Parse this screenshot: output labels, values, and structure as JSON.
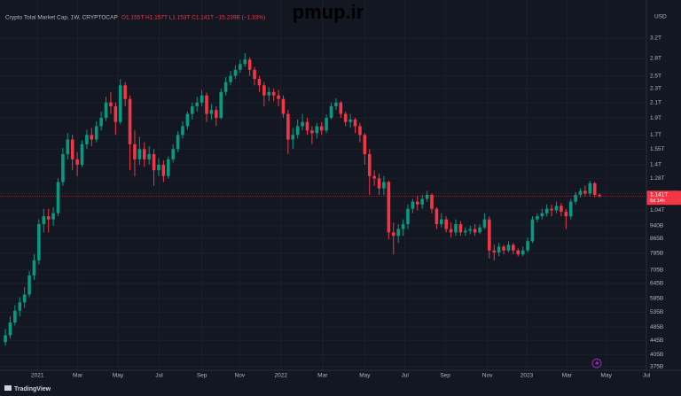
{
  "chart_data": {
    "type": "candlestick",
    "title": "Crypto Total Market Cap, 1W, CRYPTOCAP",
    "legend_ohlc": "O1.155T H1.157T L1.153T C1.141T −15.239B (−1.33%)",
    "watermark": "pmup.ir",
    "currency": "USD",
    "brand": "TradingView",
    "countdown": "6d 14h",
    "last_price": {
      "value": 1.141,
      "label": "1.141T"
    },
    "log_scale": true,
    "grid": true,
    "up_color": "#089981",
    "down_color": "#f23645",
    "open": [
      0.44,
      0.46,
      0.5,
      0.54,
      0.57,
      0.6,
      0.68,
      0.75,
      0.95,
      1.0,
      0.98,
      1.02,
      1.25,
      1.5,
      1.65,
      1.45,
      1.4,
      1.6,
      1.7,
      1.65,
      1.8,
      1.9,
      2.1,
      2.05,
      1.85,
      2.35,
      2.15,
      1.6,
      1.45,
      1.55,
      1.45,
      1.5,
      1.35,
      1.4,
      1.3,
      1.45,
      1.55,
      1.7,
      1.8,
      1.95,
      2.05,
      2.1,
      2.2,
      1.95,
      2.0,
      1.9,
      2.25,
      2.4,
      2.5,
      2.6,
      2.7,
      2.78,
      2.6,
      2.45,
      2.35,
      2.2,
      2.25,
      2.2,
      2.15,
      1.95,
      1.65,
      1.7,
      1.8,
      1.85,
      1.75,
      1.72,
      1.8,
      1.75,
      1.9,
      2.05,
      2.1,
      1.95,
      1.85,
      1.88,
      1.8,
      1.7,
      1.5,
      1.3,
      1.28,
      1.2,
      1.25,
      0.9,
      0.88,
      0.92,
      0.95,
      1.05,
      1.1,
      1.08,
      1.12,
      1.15,
      1.05,
      0.95,
      0.98,
      0.92,
      0.9,
      0.95,
      0.9,
      0.91,
      0.92,
      0.9,
      0.93,
      0.98,
      0.8,
      0.79,
      0.82,
      0.8,
      0.83,
      0.8,
      0.78,
      0.8,
      0.85,
      0.98,
      1.0,
      1.02,
      1.05,
      1.04,
      1.07,
      1.03,
      1.0,
      1.1,
      1.15,
      1.18,
      1.16,
      1.24,
      1.15
    ],
    "high": [
      0.48,
      0.52,
      0.56,
      0.59,
      0.63,
      0.7,
      0.78,
      0.98,
      1.05,
      1.05,
      1.06,
      1.28,
      1.56,
      1.72,
      1.7,
      1.52,
      1.64,
      1.76,
      1.78,
      1.86,
      1.98,
      2.18,
      2.25,
      2.1,
      2.45,
      2.4,
      2.2,
      1.75,
      1.68,
      1.62,
      1.58,
      1.55,
      1.46,
      1.44,
      1.48,
      1.6,
      1.74,
      1.86,
      1.98,
      2.1,
      2.18,
      2.28,
      2.24,
      2.08,
      2.05,
      2.3,
      2.48,
      2.58,
      2.68,
      2.78,
      2.9,
      2.82,
      2.65,
      2.5,
      2.4,
      2.32,
      2.3,
      2.28,
      2.2,
      2.0,
      1.78,
      1.88,
      1.95,
      1.9,
      1.8,
      1.84,
      1.85,
      1.94,
      2.1,
      2.16,
      2.12,
      1.98,
      1.95,
      1.9,
      1.84,
      1.72,
      1.55,
      1.35,
      1.32,
      1.3,
      1.26,
      0.96,
      0.95,
      0.98,
      1.08,
      1.12,
      1.14,
      1.15,
      1.18,
      1.16,
      1.06,
      1.02,
      1.0,
      0.96,
      0.98,
      0.97,
      0.93,
      0.94,
      0.95,
      0.95,
      1.02,
      1.0,
      0.83,
      0.84,
      0.83,
      0.85,
      0.84,
      0.81,
      0.82,
      0.87,
      1.0,
      1.02,
      1.05,
      1.08,
      1.08,
      1.1,
      1.09,
      1.05,
      1.12,
      1.17,
      1.2,
      1.22,
      1.26,
      1.25,
      1.16
    ],
    "low": [
      0.43,
      0.45,
      0.49,
      0.52,
      0.55,
      0.59,
      0.66,
      0.73,
      0.9,
      0.9,
      0.94,
      1.0,
      1.22,
      1.45,
      1.35,
      1.3,
      1.38,
      1.55,
      1.58,
      1.62,
      1.75,
      1.86,
      1.95,
      1.7,
      1.82,
      2.05,
      1.35,
      1.3,
      1.4,
      1.38,
      1.4,
      1.22,
      1.3,
      1.25,
      1.28,
      1.42,
      1.52,
      1.66,
      1.76,
      1.88,
      1.98,
      2.05,
      1.85,
      1.88,
      1.8,
      1.88,
      2.2,
      2.35,
      2.45,
      2.55,
      2.65,
      2.5,
      2.35,
      2.25,
      2.05,
      2.12,
      2.12,
      2.05,
      1.9,
      1.5,
      1.55,
      1.66,
      1.75,
      1.7,
      1.6,
      1.66,
      1.7,
      1.72,
      1.88,
      2.0,
      1.9,
      1.8,
      1.78,
      1.72,
      1.62,
      1.4,
      1.15,
      1.22,
      1.15,
      1.15,
      0.86,
      0.78,
      0.84,
      0.88,
      0.92,
      1.02,
      1.04,
      1.05,
      1.1,
      1.02,
      0.92,
      0.93,
      0.9,
      0.87,
      0.88,
      0.88,
      0.88,
      0.89,
      0.88,
      0.89,
      0.92,
      0.76,
      0.75,
      0.77,
      0.78,
      0.79,
      0.78,
      0.77,
      0.77,
      0.79,
      0.84,
      0.96,
      0.98,
      1.0,
      1.0,
      1.02,
      1.0,
      0.92,
      0.98,
      1.08,
      1.13,
      1.14,
      1.14,
      1.13,
      1.13
    ],
    "close": [
      0.46,
      0.5,
      0.54,
      0.57,
      0.6,
      0.68,
      0.75,
      0.95,
      1.0,
      0.98,
      1.02,
      1.25,
      1.5,
      1.65,
      1.45,
      1.4,
      1.6,
      1.7,
      1.65,
      1.8,
      1.9,
      2.1,
      2.05,
      1.85,
      2.35,
      2.15,
      1.6,
      1.45,
      1.55,
      1.45,
      1.5,
      1.35,
      1.4,
      1.3,
      1.45,
      1.55,
      1.7,
      1.8,
      1.95,
      2.05,
      2.1,
      2.2,
      1.95,
      2.0,
      1.9,
      2.25,
      2.4,
      2.5,
      2.6,
      2.7,
      2.78,
      2.6,
      2.45,
      2.35,
      2.2,
      2.25,
      2.2,
      2.15,
      1.95,
      1.65,
      1.7,
      1.8,
      1.85,
      1.75,
      1.72,
      1.8,
      1.75,
      1.9,
      2.05,
      2.1,
      1.95,
      1.85,
      1.88,
      1.8,
      1.7,
      1.5,
      1.3,
      1.28,
      1.2,
      1.25,
      0.9,
      0.88,
      0.92,
      0.95,
      1.05,
      1.1,
      1.08,
      1.12,
      1.15,
      1.05,
      0.95,
      0.98,
      0.92,
      0.9,
      0.95,
      0.9,
      0.91,
      0.92,
      0.9,
      0.93,
      0.98,
      0.8,
      0.79,
      0.82,
      0.8,
      0.83,
      0.8,
      0.78,
      0.8,
      0.85,
      0.98,
      1.0,
      1.02,
      1.05,
      1.04,
      1.07,
      1.03,
      1.0,
      1.1,
      1.15,
      1.18,
      1.16,
      1.24,
      1.15,
      1.14
    ],
    "xlim": [
      -1.12,
      133.6
    ],
    "xticks": [
      {
        "value": 6.7,
        "label": "2021"
      },
      {
        "value": 15.1,
        "label": "Mar"
      },
      {
        "value": 23.5,
        "label": "May"
      },
      {
        "value": 32.1,
        "label": "Jul"
      },
      {
        "value": 41,
        "label": "Sep"
      },
      {
        "value": 48.9,
        "label": "Nov"
      },
      {
        "value": 57.5,
        "label": "2022"
      },
      {
        "value": 66.2,
        "label": "Mar"
      },
      {
        "value": 75,
        "label": "May"
      },
      {
        "value": 83.4,
        "label": "Jul"
      },
      {
        "value": 91.8,
        "label": "Sep"
      },
      {
        "value": 100.6,
        "label": "Nov"
      },
      {
        "value": 108.8,
        "label": "2023"
      },
      {
        "value": 117.2,
        "label": "Mar"
      },
      {
        "value": 125.4,
        "label": "May"
      },
      {
        "value": 133.8,
        "label": "Jul"
      }
    ],
    "ylim": [
      0.366,
      3.87
    ],
    "yticks": [
      {
        "value": 3.2,
        "label": "3.2T"
      },
      {
        "value": 2.8,
        "label": "2.8T"
      },
      {
        "value": 2.5,
        "label": "2.5T"
      },
      {
        "value": 2.3,
        "label": "2.3T"
      },
      {
        "value": 2.1,
        "label": "2.1T"
      },
      {
        "value": 1.9,
        "label": "1.9T"
      },
      {
        "value": 1.7,
        "label": "1.7T"
      },
      {
        "value": 1.55,
        "label": "1.55T"
      },
      {
        "value": 1.4,
        "label": "1.4T"
      },
      {
        "value": 1.28,
        "label": "1.28T"
      },
      {
        "value": 1.16,
        "label": "1.16T"
      },
      {
        "value": 1.04,
        "label": "1.04T"
      },
      {
        "value": 0.94,
        "label": "940B"
      },
      {
        "value": 0.865,
        "label": "865B"
      },
      {
        "value": 0.785,
        "label": "785B"
      },
      {
        "value": 0.705,
        "label": "705B"
      },
      {
        "value": 0.645,
        "label": "645B"
      },
      {
        "value": 0.585,
        "label": "585B"
      },
      {
        "value": 0.535,
        "label": "535B"
      },
      {
        "value": 0.485,
        "label": "485B"
      },
      {
        "value": 0.445,
        "label": "445B"
      },
      {
        "value": 0.405,
        "label": "405B"
      },
      {
        "value": 0.375,
        "label": "375B"
      }
    ]
  }
}
